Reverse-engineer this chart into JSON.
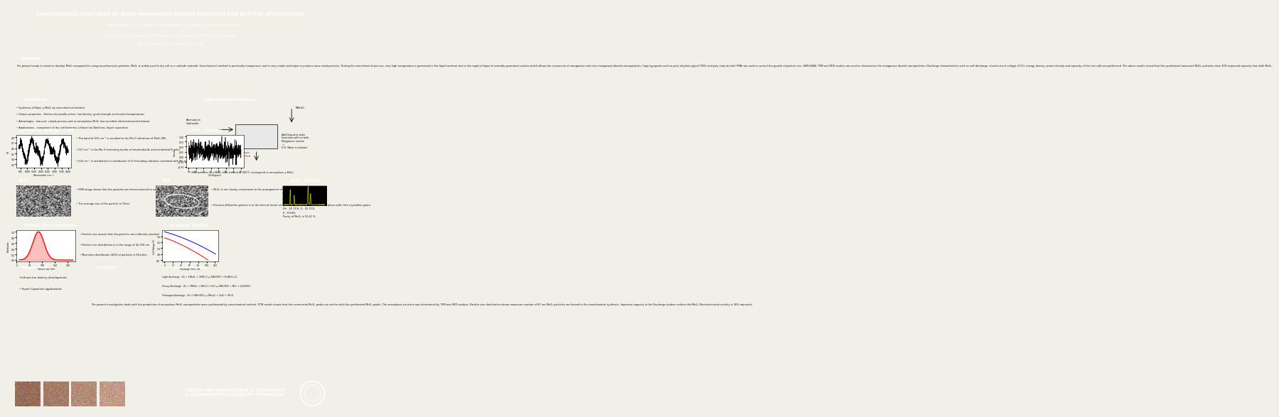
{
  "title_line1": "SONOCHEMICAL SYNTHESIS OF NANO MANGANESE DIOXIDE PARTICLES FOR BATTERY APPLICATIONS",
  "title_line2": "K. Saminathan, S. R. Srither, K. KathiKeyan, S. Praveen and V. Rajendran",
  "title_line3": "Centre for Nano science and Technology, K.S.Rangasamy College of Technology",
  "title_line4": "Tiruchengode-637215, Tamil Nadu, India",
  "header_bg": "#9B1B1B",
  "header_text_color": "#FFFFFF",
  "section_label_bg": "#C0392B",
  "section_label_text": "#FFFFFF",
  "body_bg": "#F0EFE8",
  "footer_bg": "#1A3A6B",
  "footer_text": "#FFFFFF",
  "abstract_text": "The present study is aimed to develop MnO₂ nanoparticles using sonochemical synthesis. MnO₂ is widely used in dry cell as a cathode material. Sonochemical method is practically inexpensive, and is very simple technique to produce nano sized particles. During the sonochemical process, very high temperature is generated in the liquid medium due to the rapid collapse of sonically generated cavities which allows the conversion of manganese salts into manganese dioxide nanoparticles. Capping agents such as poly ethylene glycol (PEG) and poly vinyl alcohol (PVA) are used to control the growth of particle size. SEM-EDAX, TEM and XRD studies are used to characterize the manganese dioxide nanoparticles. Discharge characteristics such as self discharge, closed circuit voltage (CCV), energy density, power density and capacity of the test cells are performed. The above results reveal that the synthesized nanosized MnO₂ particles show 30% improved capacity than bulk MnO₂.",
  "objectives": [
    "Synthesis of Nano γ-MnO₂ by sonochemical method",
    "Unique properties - Electro chemically active, low density, good strength at elevated temperatures",
    "Advantages - low-cost, simple process and an amorphous MnO₂ has excellent electrochemical behavior",
    "Applications - component of dry cell batteries, Lithium Ion Batteries, Super capacitors"
  ],
  "ftir_bullets": [
    "The band at 515 cm⁻¹ is ascribed to the Mn-O vibrations of MnO₂ NPs",
    "617 cm⁻¹ is the Mn-O stretching modes of tetrahedral A- and octahedral B- sites",
    "632 cm⁻¹ is attributed to Contribution of O-H bending vibration combined with Mn atoms"
  ],
  "xrd_bullets": [
    "XRD patterns of γ-MnO₂ heat treated at 200°C correspond to amorphous γ-MnO₂"
  ],
  "sem_bullets": [
    "SEM image shows that the particles are interconnected to each other to form an agglomeration",
    "The average size of the particle is 72nm"
  ],
  "tem_bullets": [
    "MnO₂ is not closely constrained in the arrangement of many small particles",
    "Electron diffraction pattern is in the form of toroid with few apparent rings confirms amorphous with little crystalline grains"
  ],
  "edax_text": "Mn - 55.71%, O - 35.71%,\nK - 8.58%,\nPurity of MnO₂ is 91.42 %",
  "psd_bullets": [
    "Particle size reveals that the particles are uniformly oriented",
    "Particle size distribution is in the range of 42-150 nm",
    "Maximum distribution (d50) of particles is 85±3nm"
  ],
  "chemical_reactions": [
    "Light discharge : Zn + 2MnO₂ + 2NH₄Cl → 2MnOOH + Zn(NH₃)₂Cl₂",
    "Heavy discharge : Zn + 2MnO₂ + NH₄Cl + H₂O → 2MnOOH + NH₃ + Zn(OH)Cl",
    "Prolonged discharge : Zn + 6MnOOH → 2Mn₃O₄ + ZnO + 3H₂O"
  ],
  "future_work": [
    "•Lithium Ion battery development",
    "• Super Capacitor applications"
  ],
  "conclusion_text": "The present investigation deals with the production of amorphous MnO₂ nanoparticles were synthesized by sonochemical method. FTIR results shows that the commercial MnO₂ peaks are similar with the synthesized MnO₂ peaks. The amorphous structure was determined by TEM and XRD analysis. Particle size distribution shows maximum number of 87 nm MnO₂ particles are formed in the sonochemical synthesis. Improved capacity in the Discharge studies confirm the MnO₂ Electrochemical activity is 30% improved",
  "footer_center": "CENTER FOR NANOSCIENCE & TECHNOLOGY\nK.S.RANGASAMY COLLEGE OF TECHNOLOGY"
}
